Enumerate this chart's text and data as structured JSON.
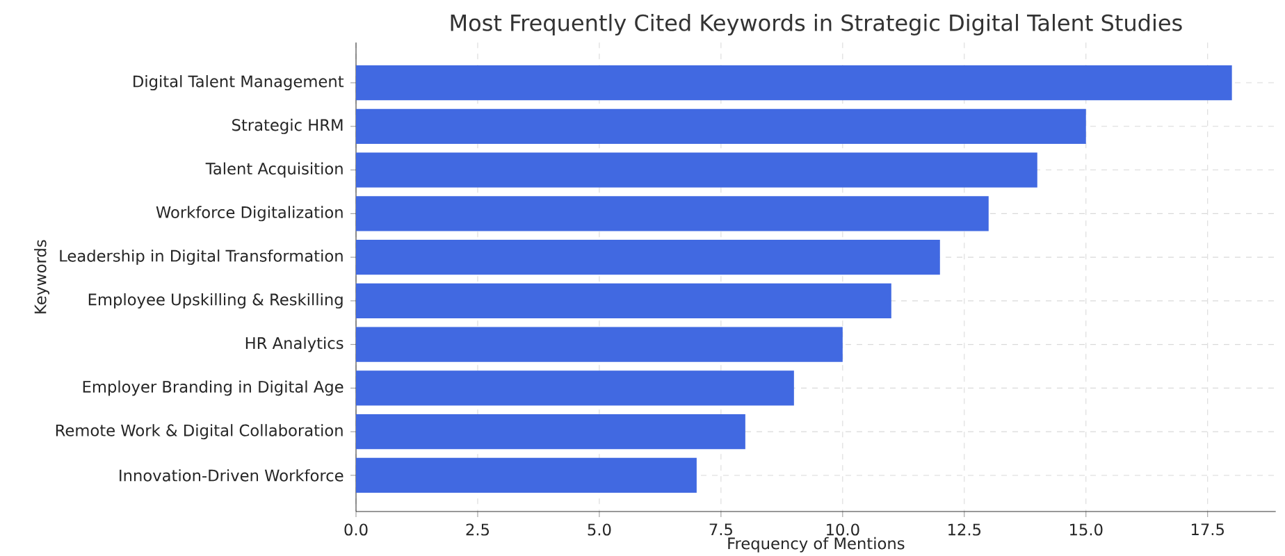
{
  "chart_data": {
    "type": "bar",
    "orientation": "horizontal",
    "title": "Most Frequently Cited Keywords in Strategic Digital Talent Studies",
    "xlabel": "Frequency of Mentions",
    "ylabel": "Keywords",
    "categories": [
      "Digital Talent Management",
      "Strategic HRM",
      "Talent Acquisition",
      "Workforce Digitalization",
      "Leadership in Digital Transformation",
      "Employee Upskilling & Reskilling",
      "HR Analytics",
      "Employer Branding in Digital Age",
      "Remote Work & Digital Collaboration",
      "Innovation-Driven Workforce"
    ],
    "values": [
      18,
      15,
      14,
      13,
      12,
      11,
      10,
      9,
      8,
      7
    ],
    "color": "#4169e1",
    "xlim": [
      0,
      18.9
    ],
    "xticks": [
      {
        "value": 0,
        "label": "0.0"
      },
      2.5,
      {
        "value": 5,
        "label": "5.0"
      },
      7.5,
      {
        "value": 10,
        "label": "10.0"
      },
      12.5,
      {
        "value": 15,
        "label": "15.0"
      },
      17.5
    ],
    "grid": true
  }
}
